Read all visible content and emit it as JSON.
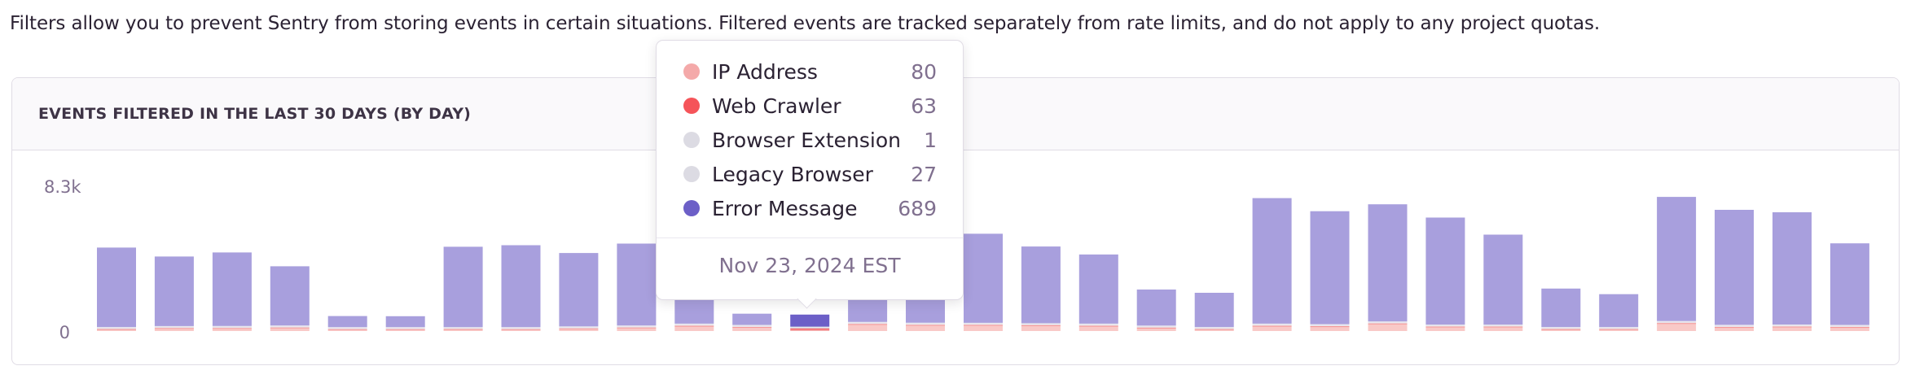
{
  "intro_text": "Filters allow you to prevent Sentry from storing events in certain situations. Filtered events are tracked separately from rate limits, and do not apply to any project quotas.",
  "panel": {
    "title": "EVENTS FILTERED IN THE LAST 30 DAYS (BY DAY)"
  },
  "tooltip": {
    "rows": [
      {
        "label": "IP Address",
        "value": "80",
        "color": "#f4a9a9"
      },
      {
        "label": "Web Crawler",
        "value": "63",
        "color": "#f55459"
      },
      {
        "label": "Browser Extension",
        "value": "1",
        "color": "#dcdbe3"
      },
      {
        "label": "Legacy Browser",
        "value": "27",
        "color": "#dcdbe3"
      },
      {
        "label": "Error Message",
        "value": "689",
        "color": "#6c5fc7"
      }
    ],
    "date": "Nov 23, 2024 EST"
  },
  "chart_data": {
    "type": "bar",
    "stacked": true,
    "title": "EVENTS FILTERED IN THE LAST 30 DAYS (BY DAY)",
    "y_ticks": [
      "0",
      "8.3k"
    ],
    "ylim": [
      0,
      8300
    ],
    "highlighted_index": 12,
    "series": [
      {
        "name": "IP Address",
        "color": "#f4a9a9",
        "values": [
          60,
          120,
          120,
          150,
          40,
          50,
          60,
          40,
          100,
          150,
          250,
          180,
          80,
          350,
          300,
          300,
          280,
          250,
          140,
          60,
          250,
          220,
          380,
          200,
          200,
          50,
          60,
          400,
          180,
          200,
          180
        ]
      },
      {
        "name": "Web Crawler",
        "color": "#f55459",
        "values": [
          20,
          20,
          20,
          20,
          40,
          20,
          30,
          40,
          20,
          40,
          60,
          40,
          63,
          60,
          60,
          60,
          60,
          60,
          60,
          40,
          60,
          60,
          60,
          60,
          60,
          60,
          40,
          60,
          60,
          60,
          60
        ]
      },
      {
        "name": "Browser Extension",
        "color": "#dcdbe3",
        "values": [
          5,
          5,
          5,
          5,
          5,
          5,
          5,
          5,
          5,
          5,
          5,
          5,
          1,
          5,
          5,
          5,
          5,
          5,
          5,
          5,
          5,
          5,
          5,
          5,
          5,
          5,
          5,
          5,
          5,
          5,
          5
        ]
      },
      {
        "name": "Legacy Browser",
        "color": "#dcdbe3",
        "values": [
          30,
          30,
          30,
          30,
          30,
          30,
          30,
          30,
          30,
          30,
          30,
          30,
          27,
          30,
          30,
          30,
          30,
          30,
          30,
          30,
          30,
          30,
          30,
          30,
          30,
          30,
          30,
          30,
          30,
          30,
          30
        ]
      },
      {
        "name": "Error Message",
        "color": "#6c5fc7",
        "values": [
          4555,
          3985,
          4215,
          3395,
          635,
          625,
          4605,
          4695,
          4205,
          4695,
          4155,
          645,
          689,
          4355,
          4805,
          5105,
          4395,
          3965,
          2065,
          1965,
          7195,
          6475,
          6715,
          6135,
          5155,
          2205,
          1885,
          7115,
          6595,
          6435,
          4675
        ]
      }
    ]
  }
}
